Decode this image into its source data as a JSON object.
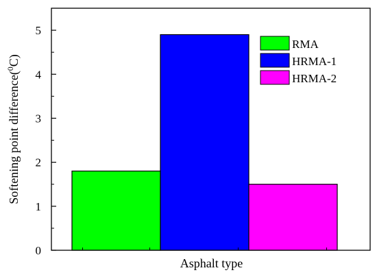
{
  "chart_data": {
    "type": "bar",
    "categories": [
      "RMA",
      "HRMA-1",
      "HRMA-2"
    ],
    "values": [
      1.8,
      4.9,
      1.5
    ],
    "colors": [
      "#00ff00",
      "#0000ff",
      "#ff00ff"
    ],
    "xlabel": "Asphalt type",
    "ylabel": "Softening point difference(",
    "ylabel_sup": "0",
    "ylabel_tail": "C)",
    "ylim": [
      0,
      5.5
    ],
    "yticks": [
      "0",
      "1",
      "2",
      "3",
      "4",
      "5"
    ],
    "legend_position": "top-right",
    "grid": false
  }
}
